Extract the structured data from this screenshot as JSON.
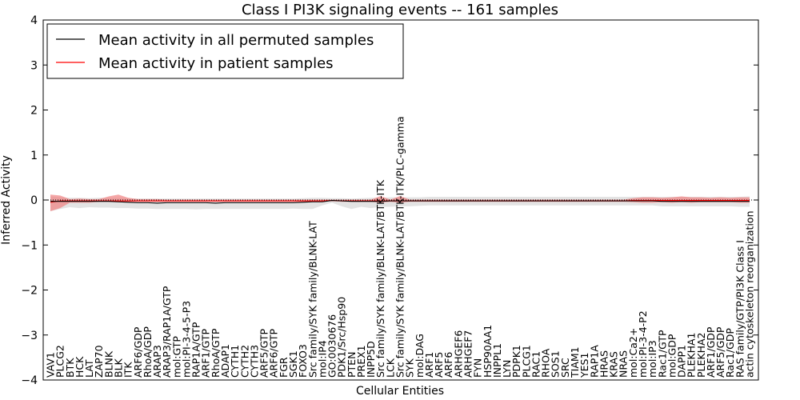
{
  "colors": {
    "mean_permuted": "#000000",
    "mean_patient": "#ff0000",
    "band_permuted": "#d0d0d0",
    "band_patient": "#f08080"
  },
  "chart_data": {
    "type": "line",
    "title": "Class I PI3K signaling events -- 161 samples",
    "xlabel": "Cellular Entities",
    "ylabel": "Inferred Activity",
    "ylim": [
      -4,
      4
    ],
    "yticks": [
      -4,
      -3,
      -2,
      -1,
      0,
      1,
      2,
      3,
      4
    ],
    "ytick_labels": [
      "−4",
      "−3",
      "−2",
      "−1",
      "0",
      "1",
      "2",
      "3",
      "4"
    ],
    "legend": {
      "location": "top-left",
      "entries": [
        {
          "label": "Mean activity in all permuted samples",
          "color": "#000000"
        },
        {
          "label": "Mean activity in patient samples",
          "color": "#ff0000"
        }
      ]
    },
    "categories": [
      "VAV1",
      "PLCG2",
      "BTK",
      "HCK",
      "LAT",
      "ZAP70",
      "BLNK",
      "BLK",
      "ITK",
      "ARF6/GDP",
      "RhoA/GDP",
      "ARAP3",
      "ARAP3/RAP1A/GTP",
      "mol:GTP",
      "mol:PI-3-4-5-P3",
      "RAP1A/GTP",
      "ARF1/GTP",
      "RhoA/GTP",
      "ADAP1",
      "CYTH1",
      "CYTH2",
      "CYTH3",
      "ARF5/GTP",
      "ARF6/GTP",
      "FGR",
      "SGK1",
      "FOXO3",
      "Src family/SYK family/BLNK-LAT",
      "mol:IP4",
      "GO:0030676",
      "PDK1/Src/Hsp90",
      "PTEN",
      "PREX1",
      "INPP5D",
      "Src family/SYK family/BLNK-LAT/BTK-ITK",
      "LCK",
      "Src family/SYK family/BLNK-LAT/BTK-ITK/PLC-gamma",
      "SYK",
      "mol:DAG",
      "ARF1",
      "ARF5",
      "ARF6",
      "ARHGEF6",
      "ARHGEF7",
      "FYN",
      "HSP90AA1",
      "INPPL1",
      "LYN",
      "PDPK1",
      "PLCG1",
      "RAC1",
      "RHOA",
      "SOS1",
      "SRC",
      "TIAM1",
      "YES1",
      "RAP1A",
      "HRAS",
      "KRAS",
      "NRAS",
      "mol:Ca2+",
      "mol:PI-3-4-P2",
      "mol:IP3",
      "Rac1/GTP",
      "mol:GDP",
      "DAPP1",
      "PLEKHA1",
      "PLEKHA2",
      "ARF1/GDP",
      "ARF5/GDP",
      "Rac1/GDP",
      "RAS family/GTP/PI3K Class I",
      "actin cytoskeleton reorganization"
    ],
    "series": [
      {
        "name": "Mean activity in all permuted samples",
        "values": [
          -0.03,
          -0.03,
          -0.03,
          -0.03,
          -0.03,
          -0.03,
          -0.03,
          -0.04,
          -0.05,
          -0.06,
          -0.06,
          -0.07,
          -0.06,
          -0.06,
          -0.06,
          -0.06,
          -0.06,
          -0.07,
          -0.06,
          -0.06,
          -0.06,
          -0.06,
          -0.06,
          -0.06,
          -0.06,
          -0.06,
          -0.05,
          -0.04,
          -0.04,
          -0.01,
          -0.02,
          -0.03,
          -0.03,
          -0.03,
          -0.03,
          -0.02,
          -0.02,
          -0.02,
          -0.02,
          -0.02,
          -0.02,
          -0.02,
          -0.02,
          -0.02,
          -0.02,
          -0.02,
          -0.02,
          -0.02,
          -0.02,
          -0.02,
          -0.02,
          -0.02,
          -0.02,
          -0.02,
          -0.02,
          -0.02,
          -0.02,
          -0.02,
          -0.02,
          -0.02,
          -0.02,
          -0.02,
          -0.02,
          -0.03,
          -0.03,
          -0.03,
          -0.03,
          -0.03,
          -0.03,
          -0.03,
          -0.03,
          -0.03,
          -0.03
        ],
        "band": {
          "lower": [
            -0.25,
            -0.2,
            -0.16,
            -0.18,
            -0.16,
            -0.17,
            -0.17,
            -0.18,
            -0.18,
            -0.19,
            -0.19,
            -0.2,
            -0.2,
            -0.2,
            -0.2,
            -0.21,
            -0.2,
            -0.2,
            -0.2,
            -0.2,
            -0.2,
            -0.2,
            -0.2,
            -0.2,
            -0.2,
            -0.19,
            -0.2,
            -0.2,
            -0.12,
            -0.06,
            -0.14,
            -0.2,
            -0.15,
            -0.18,
            -0.15,
            -0.15,
            -0.14,
            -0.14,
            -0.13,
            -0.12,
            -0.12,
            -0.12,
            -0.12,
            -0.12,
            -0.12,
            -0.12,
            -0.12,
            -0.12,
            -0.12,
            -0.12,
            -0.12,
            -0.12,
            -0.12,
            -0.12,
            -0.12,
            -0.12,
            -0.12,
            -0.12,
            -0.12,
            -0.12,
            -0.12,
            -0.12,
            -0.12,
            -0.14,
            -0.14,
            -0.14,
            -0.14,
            -0.14,
            -0.14,
            -0.14,
            -0.14,
            -0.15,
            -0.15
          ],
          "upper": [
            0.08,
            0.06,
            0.05,
            0.05,
            0.04,
            0.05,
            0.05,
            0.05,
            0.04,
            0.03,
            0.03,
            0.03,
            0.03,
            0.03,
            0.03,
            0.03,
            0.03,
            0.03,
            0.03,
            0.03,
            0.03,
            0.03,
            0.03,
            0.03,
            0.03,
            0.03,
            0.04,
            0.05,
            0.05,
            0.04,
            0.04,
            0.03,
            0.04,
            0.05,
            0.05,
            0.06,
            0.06,
            0.06,
            0.06,
            0.07,
            0.07,
            0.07,
            0.07,
            0.07,
            0.07,
            0.07,
            0.07,
            0.07,
            0.07,
            0.07,
            0.07,
            0.07,
            0.07,
            0.07,
            0.07,
            0.07,
            0.07,
            0.07,
            0.07,
            0.07,
            0.07,
            0.07,
            0.07,
            0.07,
            0.07,
            0.07,
            0.07,
            0.07,
            0.07,
            0.07,
            0.07,
            0.07,
            0.08
          ]
        }
      },
      {
        "name": "Mean activity in patient samples",
        "values": [
          -0.05,
          -0.02,
          -0.02,
          -0.02,
          -0.02,
          -0.02,
          -0.02,
          -0.02,
          -0.02,
          -0.02,
          -0.02,
          -0.02,
          -0.02,
          -0.02,
          -0.02,
          -0.02,
          -0.02,
          -0.02,
          -0.02,
          -0.02,
          -0.02,
          -0.02,
          -0.02,
          -0.02,
          -0.02,
          -0.02,
          -0.02,
          -0.02,
          -0.02,
          -0.01,
          -0.02,
          -0.02,
          -0.02,
          -0.02,
          -0.02,
          -0.02,
          -0.02,
          -0.02,
          -0.02,
          -0.02,
          -0.02,
          -0.02,
          -0.02,
          -0.02,
          -0.02,
          -0.02,
          -0.02,
          -0.02,
          -0.02,
          -0.02,
          -0.02,
          -0.02,
          -0.02,
          -0.02,
          -0.02,
          -0.02,
          -0.02,
          -0.02,
          -0.02,
          -0.02,
          -0.01,
          -0.01,
          -0.01,
          -0.01,
          -0.01,
          -0.01,
          -0.01,
          -0.01,
          -0.01,
          -0.01,
          -0.01,
          -0.01,
          -0.01
        ],
        "band": {
          "lower": [
            -0.25,
            -0.18,
            -0.06,
            -0.06,
            -0.06,
            -0.04,
            -0.04,
            -0.05,
            -0.04,
            -0.04,
            -0.04,
            -0.04,
            -0.04,
            -0.04,
            -0.04,
            -0.04,
            -0.04,
            -0.04,
            -0.04,
            -0.04,
            -0.04,
            -0.04,
            -0.04,
            -0.04,
            -0.04,
            -0.04,
            -0.04,
            -0.04,
            -0.04,
            -0.02,
            -0.04,
            -0.04,
            -0.04,
            -0.04,
            -0.06,
            -0.04,
            -0.06,
            -0.04,
            -0.04,
            -0.04,
            -0.04,
            -0.04,
            -0.04,
            -0.04,
            -0.04,
            -0.04,
            -0.04,
            -0.04,
            -0.04,
            -0.04,
            -0.04,
            -0.04,
            -0.04,
            -0.04,
            -0.04,
            -0.04,
            -0.04,
            -0.04,
            -0.04,
            -0.04,
            -0.05,
            -0.06,
            -0.06,
            -0.05,
            -0.06,
            -0.05,
            -0.06,
            -0.05,
            -0.05,
            -0.05,
            -0.05,
            -0.06,
            -0.06
          ],
          "upper": [
            0.12,
            0.1,
            0.02,
            0.03,
            0.02,
            0.02,
            0.08,
            0.12,
            0.05,
            0.02,
            0.02,
            0.02,
            0.01,
            0.01,
            0.01,
            0.01,
            0.01,
            0.01,
            0.01,
            0.01,
            0.01,
            0.01,
            0.01,
            0.01,
            0.01,
            0.01,
            0.01,
            0.01,
            0.01,
            0.01,
            0.01,
            0.01,
            0.01,
            0.01,
            0.09,
            0.01,
            0.09,
            0.01,
            0.01,
            0.01,
            0.01,
            0.01,
            0.01,
            0.01,
            0.01,
            0.01,
            0.01,
            0.01,
            0.01,
            0.01,
            0.01,
            0.01,
            0.01,
            0.01,
            0.01,
            0.01,
            0.01,
            0.01,
            0.01,
            0.01,
            0.04,
            0.06,
            0.06,
            0.05,
            0.06,
            0.08,
            0.06,
            0.06,
            0.05,
            0.06,
            0.05,
            0.06,
            0.06
          ]
        }
      }
    ]
  }
}
